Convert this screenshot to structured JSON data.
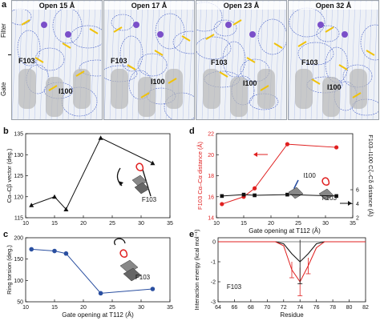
{
  "panel_labels": {
    "a": "a",
    "b": "b",
    "c": "c",
    "d": "d",
    "e": "e"
  },
  "panel_a": {
    "titles": [
      "Open 15 Å",
      "Open 17 Å",
      "Open 23 Å",
      "Open 32 Å"
    ],
    "side_labels": {
      "filter": "Filter",
      "gate": "Gate"
    },
    "residue_labels": {
      "f103": "F103",
      "i100": "I100"
    }
  },
  "colors": {
    "black": "#111111",
    "blue": "#2a4fa0",
    "red": "#e02020"
  },
  "chart_data": [
    {
      "id": "b",
      "type": "line",
      "x": [
        11,
        15,
        17,
        23,
        32
      ],
      "series": [
        {
          "values": [
            118,
            120,
            117,
            134,
            128
          ]
        }
      ],
      "xlim": [
        10,
        35
      ],
      "ylim": [
        115,
        135
      ],
      "xticks": [
        10,
        15,
        20,
        25,
        30,
        35
      ],
      "yticks": [
        115,
        120,
        125,
        130,
        135
      ],
      "ylabel": "Cα–Cβ vector (deg.)",
      "xlabel": "",
      "annotation": "F103"
    },
    {
      "id": "c",
      "type": "line",
      "x": [
        11,
        15,
        17,
        23,
        32
      ],
      "series": [
        {
          "values": [
            173,
            169,
            163,
            70,
            80
          ]
        }
      ],
      "xlim": [
        10,
        35
      ],
      "ylim": [
        50,
        200
      ],
      "xticks": [
        10,
        15,
        20,
        25,
        30,
        35
      ],
      "yticks": [
        50,
        100,
        150,
        200
      ],
      "ylabel": "Ring torsion (deg.)",
      "xlabel": "Gate opening at T112 (Å)",
      "annotation": "F103"
    },
    {
      "id": "d",
      "type": "line",
      "x": [
        11,
        15,
        17,
        23,
        32
      ],
      "series": [
        {
          "values": [
            15.3,
            16.0,
            16.8,
            21.0,
            20.7
          ]
        },
        {
          "values": [
            5.1,
            5.3,
            5.2,
            5.3,
            5.1
          ]
        }
      ],
      "xlim": [
        10,
        35
      ],
      "ylim_left": [
        14,
        22
      ],
      "ylim_right": [
        2,
        6
      ],
      "xticks": [
        10,
        15,
        20,
        25,
        30,
        35
      ],
      "yticks_left": [
        14,
        16,
        18,
        20,
        22
      ],
      "yticks_right": [
        2,
        4,
        6
      ],
      "ylabel_left": "F103 Cα–Cα distance (Å)",
      "ylabel_right": "F103–I100 Cζ–Cδ distance (Å)",
      "xlabel": "Gate opening at T112 (Å)",
      "annotations": [
        "I100",
        "F103"
      ]
    },
    {
      "id": "e",
      "type": "line",
      "x": [
        64,
        65,
        66,
        67,
        68,
        69,
        70,
        71,
        72,
        73,
        74,
        75,
        76,
        77,
        78,
        79,
        80,
        81,
        82
      ],
      "series": [
        {
          "values": [
            0,
            0,
            0,
            0,
            0,
            0,
            0,
            0,
            -0.1,
            -0.6,
            -1.0,
            -0.6,
            -0.1,
            0,
            0,
            0,
            0,
            0,
            0
          ]
        },
        {
          "values": [
            0,
            0,
            0,
            0,
            0,
            0,
            0,
            0,
            -0.2,
            -1.4,
            -2.0,
            -1.2,
            -0.3,
            0,
            0,
            0,
            0,
            0,
            0
          ]
        }
      ],
      "xlim": [
        64,
        82
      ],
      "ylim": [
        -3,
        0.2
      ],
      "xticks": [
        64,
        66,
        68,
        70,
        72,
        74,
        76,
        78,
        80,
        82
      ],
      "yticks": [
        0,
        -1,
        -2,
        -3
      ],
      "ylabel": "Interaction energy (kcal mol⁻¹)",
      "xlabel": "Residue",
      "annotation": "F103"
    }
  ]
}
